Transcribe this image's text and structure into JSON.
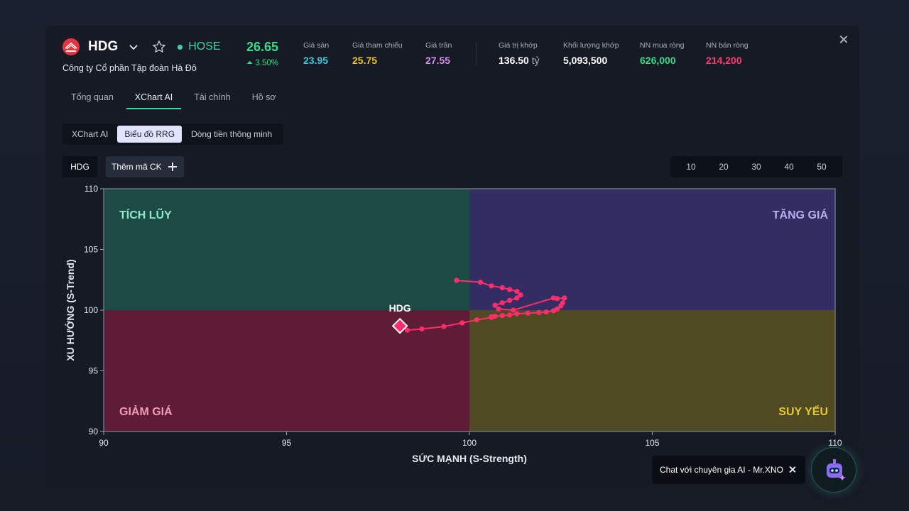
{
  "header": {
    "ticker": "HDG",
    "exchange": "HOSE",
    "company": "Công ty Cổ phần Tập đoàn Hà Đô",
    "price": "26.65",
    "change": "3.50%"
  },
  "stats": [
    {
      "label": "Giá sàn",
      "value": "23.95",
      "color": "#3dc6e0"
    },
    {
      "label": "Giá tham chiếu",
      "value": "25.75",
      "color": "#f0c419"
    },
    {
      "label": "Giá trần",
      "value": "27.55",
      "color": "#d98be8"
    },
    {
      "label": "Giá trị khớp",
      "value": "136.50",
      "unit": "tỷ",
      "color": "#ffffff"
    },
    {
      "label": "Khối lượng khớp",
      "value": "5,093,500",
      "color": "#ffffff"
    },
    {
      "label": "NN mua ròng",
      "value": "626,000",
      "color": "#39d98a"
    },
    {
      "label": "NN bán ròng",
      "value": "214,200",
      "color": "#ff3b6b"
    }
  ],
  "tabs": [
    "Tổng quan",
    "XChart AI",
    "Tài chính",
    "Hồ sơ"
  ],
  "active_tab": "XChart AI",
  "subtabs": [
    "XChart AI",
    "Biểu đồ RRG",
    "Dòng tiền thông minh"
  ],
  "active_subtab": "Biểu đồ RRG",
  "symbol_chip": "HDG",
  "add_symbol_label": "Thêm mã CK",
  "periods": [
    "10",
    "20",
    "30",
    "40",
    "50"
  ],
  "chat": {
    "label": "Chat với chuyên gia AI - Mr.XNO"
  },
  "chart_data": {
    "type": "scatter",
    "xlabel": "SỨC MẠNH (S-Strength)",
    "ylabel": "XU HƯỚNG (S-Trend)",
    "xlim": [
      90,
      110
    ],
    "ylim": [
      90,
      110
    ],
    "xticks": [
      90,
      95,
      100,
      105,
      110
    ],
    "yticks": [
      90,
      95,
      100,
      105,
      110
    ],
    "quadrants": {
      "top_left": {
        "label": "TÍCH LŨY",
        "color": "#1e4a45",
        "text_color": "#8ce8c8"
      },
      "top_right": {
        "label": "TĂNG GIÁ",
        "color": "#332d63",
        "text_color": "#b9adf0"
      },
      "bottom_left": {
        "label": "GIẢM GIÁ",
        "color": "#5e1c36",
        "text_color": "#f39bb3"
      },
      "bottom_right": {
        "label": "SUY YẾU",
        "color": "#4f4a22",
        "text_color": "#e8c830"
      }
    },
    "series": [
      {
        "name": "HDG",
        "color": "#ff2d6b",
        "x": [
          99.65,
          100.3,
          100.6,
          100.9,
          101.1,
          101.3,
          101.4,
          101.3,
          101.1,
          100.9,
          100.7,
          100.8,
          101.2,
          102.3,
          102.4,
          102.6,
          102.55,
          102.5,
          102.4,
          102.3,
          102.1,
          101.9,
          101.6,
          101.3,
          101.1,
          100.9,
          100.7,
          100.6,
          100.6,
          100.2,
          99.8,
          99.3,
          98.7,
          98.3
        ],
        "y": [
          102.45,
          102.3,
          102.0,
          101.85,
          101.7,
          101.55,
          101.25,
          101.0,
          100.8,
          100.6,
          100.4,
          100.1,
          100.0,
          101.0,
          100.95,
          101.0,
          100.6,
          100.35,
          100.1,
          99.95,
          99.85,
          99.8,
          99.75,
          99.7,
          99.6,
          99.55,
          99.5,
          99.45,
          99.4,
          99.2,
          98.95,
          98.65,
          98.45,
          98.35
        ],
        "current": {
          "x": 98.1,
          "y": 98.7
        }
      }
    ]
  }
}
